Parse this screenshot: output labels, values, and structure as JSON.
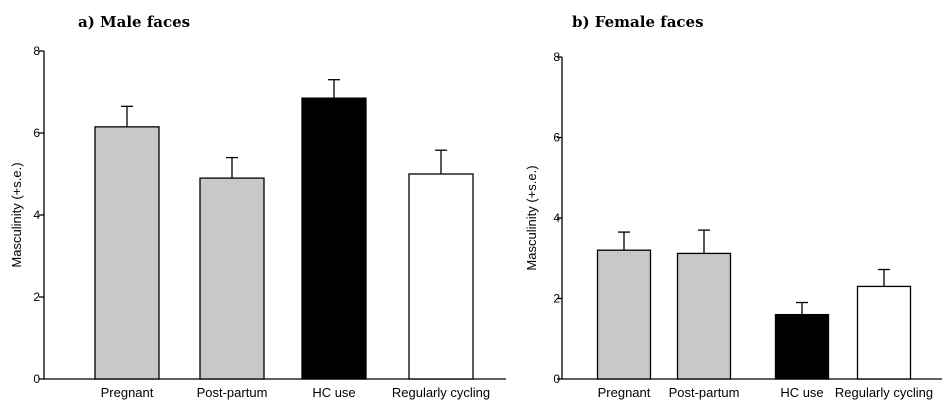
{
  "chart_data": [
    {
      "type": "bar",
      "title": "a) Male faces",
      "xlabel": "",
      "ylabel": "Masculinity (+s.e.)",
      "ylim": [
        0,
        8
      ],
      "yticks": [
        "0",
        "2",
        "4",
        "6",
        "8"
      ],
      "grid": false,
      "categories": [
        "Pregnant",
        "Post-partum",
        "HC use",
        "Regularly cycling"
      ],
      "values": [
        6.15,
        4.9,
        6.85,
        5.0
      ],
      "errors": [
        0.5,
        0.5,
        0.45,
        0.58
      ],
      "colors": [
        "#c8c8c8",
        "#c8c8c8",
        "#000000",
        "#ffffff"
      ]
    },
    {
      "type": "bar",
      "title": "b) Female faces",
      "xlabel": "",
      "ylabel": "Masculinity (+s.e.)",
      "ylim": [
        0,
        8
      ],
      "yticks": [
        "0",
        "2",
        "4",
        "6",
        "8"
      ],
      "grid": false,
      "categories": [
        "Pregnant",
        "Post-partum",
        "HC use",
        "Regularly cycling"
      ],
      "values": [
        3.2,
        3.12,
        1.6,
        2.3
      ],
      "errors": [
        0.45,
        0.58,
        0.3,
        0.42
      ],
      "colors": [
        "#c8c8c8",
        "#c8c8c8",
        "#000000",
        "#ffffff"
      ]
    }
  ]
}
